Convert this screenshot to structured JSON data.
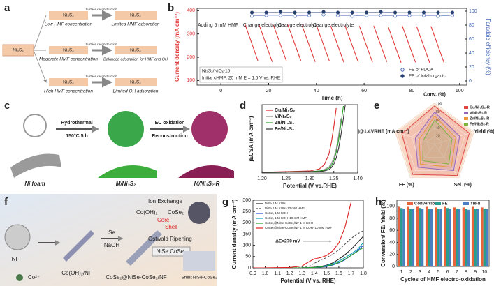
{
  "figure_a": {
    "panel": "a",
    "substrate": "Ni₃S₂",
    "rows": [
      {
        "left": "Ni₃S₂",
        "process": "Surface reconstruction",
        "right": "Ni₃S₂",
        "condition": "Low HMF concentration",
        "result": "Limited HMF adsorption"
      },
      {
        "left": "Ni₃S₂",
        "process": "Surface reconstruction",
        "right": "Ni₃S₂",
        "condition": "Moderate HMF concentration",
        "result": "Balanced adsorption for HMF and OH"
      },
      {
        "left": "Ni₃S₂",
        "process": "Surface reconstruction",
        "right": "Ni₃S₂",
        "condition": "High HMF concentration",
        "result": "Limited OH adsorption"
      }
    ]
  },
  "figure_c": {
    "panel": "c",
    "step1": "Hydrothermal",
    "step1_condition": "150°C 5 h",
    "step2": "EC oxidation",
    "step2_condition": "Reconstruction",
    "labels": [
      "Ni foam",
      "M/Ni₃S₂",
      "M/Ni₃S₂-R"
    ]
  },
  "figure_f": {
    "panel": "f",
    "nf": "NF",
    "ion": "Co²⁺",
    "intermediate": "Co(OH)₂/NF",
    "reagent": "Se",
    "base": "NaOH",
    "ion_exchange": "Ion Exchange",
    "core_material": "Co(OH)₂",
    "shell_material": "CoSe₂",
    "core": "Core",
    "shell": "Shell",
    "ripening": "Ostwald Ripening",
    "products": "NiSe  CoSe₂",
    "product": "CoSe₂@NiSe-CoSe₂/NF",
    "shell_label": "Shell:NiSe-CoSe₂"
  },
  "chart_data": [
    {
      "type": "line",
      "panel": "b",
      "xlabel": "Time (h)",
      "ylabel": "Current density (mA cm⁻²)",
      "y2label": "Faradaic efficiency (%)",
      "xlim": [
        -10,
        103
      ],
      "xticks": [
        0,
        20,
        40,
        60,
        80,
        100
      ],
      "ylim": [
        80,
        410
      ],
      "yticks": [
        100,
        200,
        300,
        400
      ],
      "y2lim": [
        -6,
        104
      ],
      "y2ticks": [
        0,
        20,
        40,
        60,
        80,
        100
      ],
      "annotations": [
        "Adding 5 mM HMF",
        "Change electrolyte",
        "Change electrolyte",
        "Change electrolyte"
      ],
      "info": [
        "Ni₃S₂/NiOₓ-15",
        "Initial cHMF: 20 mM    E = 1.5 V vs. RHE"
      ],
      "series": [
        {
          "color": "#e03a3a",
          "x": [
            10,
            15.5,
            15.7,
            16,
            21.5,
            21.7,
            22,
            27.5,
            27.7,
            28,
            33.5,
            33.7,
            34,
            39.5,
            39.7,
            40,
            45.5,
            45.7,
            46,
            51.5,
            51.7,
            52,
            57.5,
            57.7,
            58,
            63.5,
            63.7,
            64,
            69.5,
            69.7,
            70,
            75.5,
            75.7,
            76,
            81.5,
            81.7,
            82,
            87.5,
            87.7,
            88,
            93.5
          ],
          "values": [
            345,
            185,
            null,
            340,
            180,
            null,
            338,
            182,
            null,
            340,
            185,
            null,
            336,
            180,
            null,
            338,
            182,
            null,
            335,
            178,
            null,
            336,
            180,
            null,
            334,
            178,
            null,
            335,
            180,
            null,
            333,
            176,
            null,
            334,
            178,
            null,
            332,
            175,
            null,
            333,
            176
          ]
        },
        {
          "name": "FE of FDCA",
          "color": "#3f63b5",
          "marker": "open",
          "axis": "y2",
          "x": [
            13,
            19,
            25,
            31,
            37,
            43,
            49,
            55,
            61,
            67,
            73,
            79,
            85,
            91,
            97
          ],
          "values": [
            93,
            94,
            94,
            93,
            94,
            95,
            94,
            93,
            94,
            94,
            93,
            94,
            94,
            93,
            94
          ]
        },
        {
          "name": "FE of total organic",
          "color": "#28406e",
          "marker": "filled",
          "axis": "y2",
          "x": [
            13,
            19,
            25,
            31,
            37,
            43,
            49,
            55,
            61,
            67,
            73,
            79,
            85,
            91,
            97
          ],
          "values": [
            98,
            98,
            99,
            98,
            98,
            99,
            98,
            98,
            98,
            99,
            98,
            98,
            98,
            98,
            98
          ]
        }
      ]
    },
    {
      "type": "line",
      "panel": "d",
      "xlabel": "Potential (V vs.RHE)",
      "ylabel": "jECSA (mA cm⁻²)",
      "xlim": [
        1.2,
        1.4
      ],
      "xticks": [
        {
          "value": 1.2,
          "label": "1.20"
        },
        1.25,
        {
          "value": 1.3,
          "label": "1.30"
        },
        1.35,
        {
          "value": 1.4,
          "label": "1.40"
        }
      ],
      "ylim": [
        0,
        100
      ],
      "x": [
        1.2,
        1.3,
        1.32,
        1.33,
        1.34,
        1.345,
        1.35,
        1.355,
        1.36,
        1.365,
        1.37,
        1.375
      ],
      "series": [
        {
          "name": "Cu/Ni₃S₂",
          "color": "#d62728",
          "values": [
            1,
            3,
            6,
            12,
            28,
            45,
            68,
            95,
            null,
            null,
            null,
            null
          ]
        },
        {
          "name": "V/Ni₃S₂",
          "color": "#8c8c8c",
          "values": [
            1,
            2,
            3,
            5,
            9,
            14,
            22,
            35,
            55,
            80,
            null,
            null
          ]
        },
        {
          "name": "Zn/Ni₃S₂",
          "color": "#2ca02c",
          "values": [
            1,
            2,
            3,
            4,
            7,
            11,
            18,
            30,
            48,
            72,
            98,
            null
          ]
        },
        {
          "name": "Fe/Ni₃S₂",
          "color": "#333333",
          "values": [
            1,
            2,
            2,
            3,
            5,
            8,
            13,
            22,
            36,
            56,
            80,
            105
          ]
        }
      ]
    },
    {
      "type": "radar",
      "panel": "e",
      "axes": [
        "Conv. (%)",
        "Yield (%)",
        "Sel. (%)",
        "FE (%)",
        "j@1.4VRHE (mA cm⁻²)"
      ],
      "rlim": [
        0,
        100
      ],
      "rticks": [
        20,
        40,
        60,
        80,
        100
      ],
      "series": [
        {
          "name": "Cu/Ni₃S₂-R",
          "color": "#e04848",
          "values": [
            95,
            90,
            95,
            92,
            85
          ]
        },
        {
          "name": "V/Ni₃S₂-R",
          "color": "#9467bd",
          "values": [
            80,
            65,
            80,
            70,
            50
          ]
        },
        {
          "name": "Zn/Ni₃S₂-R",
          "color": "#e89a3a",
          "values": [
            70,
            55,
            70,
            60,
            40
          ]
        },
        {
          "name": "Fe/Ni₃S₂-R",
          "color": "#7cb342",
          "values": [
            60,
            45,
            60,
            50,
            30
          ]
        }
      ]
    },
    {
      "type": "line",
      "panel": "g",
      "xlabel": "Potential (V vs. RHE)",
      "ylabel": "Current density (mA cm⁻²)",
      "xlim": [
        0.9,
        1.8
      ],
      "xticks": [
        0.9,
        {
          "value": 1.0,
          "label": "1.0"
        },
        1.1,
        1.2,
        1.3,
        1.4,
        1.5,
        1.6,
        1.7,
        1.8
      ],
      "ylim": [
        0,
        300
      ],
      "yticks": [
        0,
        50,
        100,
        150,
        200,
        250,
        300
      ],
      "annotation": "ΔE=270 mV",
      "x": [
        0.9,
        1.0,
        1.1,
        1.2,
        1.3,
        1.35,
        1.4,
        1.45,
        1.5,
        1.55,
        1.6,
        1.65,
        1.7,
        1.75,
        1.8
      ],
      "series": [
        {
          "name": "NiSe  1 M KOH",
          "color": "#222222",
          "values": [
            0,
            0,
            0,
            0,
            0,
            1,
            3,
            6,
            12,
            22,
            38,
            58,
            82,
            110,
            140
          ]
        },
        {
          "name": "NiSe  1 M KOH+10 mM HMF",
          "color": "#555555",
          "dash": true,
          "values": [
            0,
            0,
            0,
            0,
            1,
            5,
            20,
            35,
            45,
            60,
            80,
            105,
            130,
            150,
            165
          ]
        },
        {
          "name": "CoSe₂ 1 M KOH",
          "color": "#1f4fd1",
          "values": [
            0,
            0,
            0,
            0,
            0,
            0,
            1,
            3,
            6,
            12,
            22,
            36,
            55,
            75,
            100
          ]
        },
        {
          "name": "CoSe₂ 1 M KOH+10 mM HMF",
          "color": "#17a2b8",
          "values": [
            0,
            0,
            0,
            0,
            0,
            1,
            2,
            5,
            10,
            18,
            30,
            45,
            62,
            80,
            112
          ]
        },
        {
          "name": "CoSe₂@NiSe-CoSe₂/NF 1 M KOH",
          "color": "#2ca02c",
          "values": [
            0,
            0,
            0,
            0,
            0,
            1,
            2,
            4,
            8,
            14,
            24,
            38,
            55,
            72,
            90
          ]
        },
        {
          "name": "CoSe₂@NiSe-CoSe₂/NF 1 M KOH+10 mM HMF",
          "color": "#e02020",
          "values": [
            0,
            0,
            1,
            2,
            8,
            25,
            40,
            45,
            55,
            75,
            110,
            180,
            290,
            null,
            null
          ]
        }
      ]
    },
    {
      "type": "bar",
      "panel": "h",
      "xlabel": "Cycles of HMF electro-oxidation",
      "ylabel": "Conversion/ FE/ Yield (%)",
      "categories": [
        "1",
        "2",
        "3",
        "4",
        "5",
        "6",
        "7",
        "8",
        "9",
        "10"
      ],
      "ylim": [
        0,
        110
      ],
      "yticks": [
        0,
        20,
        40,
        60,
        80,
        100
      ],
      "series": [
        {
          "name": "Conversion",
          "color": "#e8643c",
          "values": [
            99,
            99,
            99,
            99,
            98,
            99,
            98,
            98,
            99,
            98
          ]
        },
        {
          "name": "FE",
          "color": "#2a9d8f",
          "values": [
            97,
            96,
            97,
            96,
            96,
            97,
            96,
            95,
            96,
            96
          ]
        },
        {
          "name": "Yield",
          "color": "#4a7fc1",
          "values": [
            96,
            95,
            96,
            95,
            95,
            96,
            95,
            94,
            95,
            95
          ]
        }
      ]
    }
  ]
}
